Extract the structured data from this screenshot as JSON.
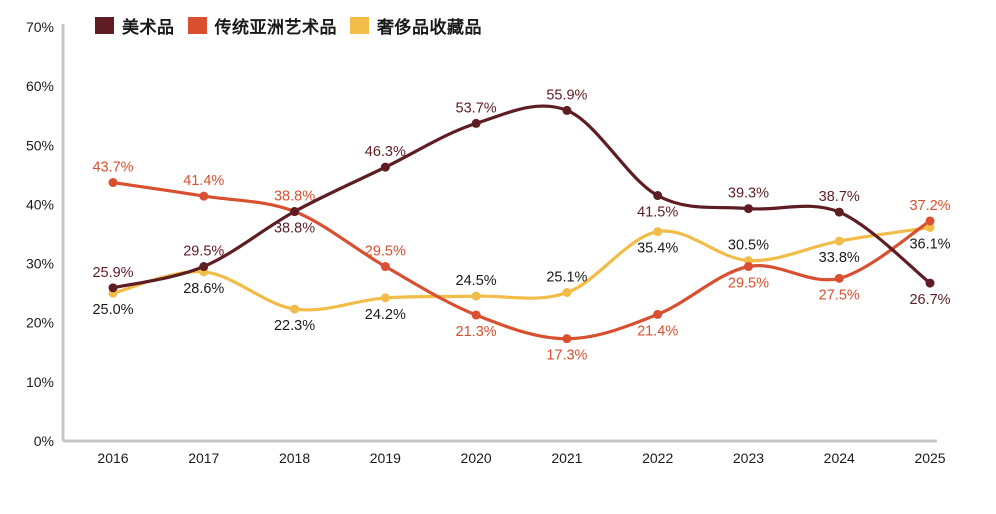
{
  "page": {
    "background": "#ffffff"
  },
  "legend": {
    "items": [
      {
        "id": "fine-art",
        "label": "美术品",
        "color": "#5E1D23"
      },
      {
        "id": "traditional-asian-art",
        "label": "传统亚洲艺术品",
        "color": "#D8502F"
      },
      {
        "id": "luxury-collectibles",
        "label": "奢侈品收藏品",
        "color": "#F2BC49"
      }
    ]
  },
  "chart_data": {
    "type": "line",
    "categories": [
      "2016",
      "2017",
      "2018",
      "2019",
      "2020",
      "2021",
      "2022",
      "2023",
      "2024",
      "2025"
    ],
    "series": [
      {
        "id": "fine-art",
        "name": "美术品",
        "color": "#5E1D23",
        "label_color": "#5E1D23",
        "values": [
          25.9,
          29.5,
          38.8,
          46.3,
          53.7,
          55.9,
          41.5,
          39.3,
          38.7,
          26.7
        ],
        "labels": [
          "25.9%",
          "29.5%",
          "38.8%",
          "46.3%",
          "53.7%",
          "55.9%",
          "41.5%",
          "39.3%",
          "38.7%",
          "26.7%"
        ],
        "label_positions": [
          "above",
          "above",
          "below",
          "above",
          "above",
          "above",
          "below",
          "above",
          "above",
          "below"
        ]
      },
      {
        "id": "traditional-asian-art",
        "name": "传统亚洲艺术品",
        "color": "#D8502F",
        "label_color": "#D8502F",
        "values": [
          43.7,
          41.4,
          38.8,
          29.5,
          21.3,
          17.3,
          21.4,
          29.5,
          27.5,
          37.2
        ],
        "labels": [
          "43.7%",
          "41.4%",
          "38.8%",
          "29.5%",
          "21.3%",
          "17.3%",
          "21.4%",
          "29.5%",
          "27.5%",
          "37.2%"
        ],
        "label_positions": [
          "above",
          "above",
          "above",
          "above",
          "below",
          "below",
          "below",
          "below",
          "below",
          "above"
        ]
      },
      {
        "id": "luxury-collectibles",
        "name": "奢侈品收藏品",
        "color": "#F2BC49",
        "label_color": "#1A1A1A",
        "values": [
          25.0,
          28.6,
          22.3,
          24.2,
          24.5,
          25.1,
          35.4,
          30.5,
          33.8,
          36.1
        ],
        "labels": [
          "25.0%",
          "28.6%",
          "22.3%",
          "24.2%",
          "24.5%",
          "25.1%",
          "35.4%",
          "30.5%",
          "33.8%",
          "36.1%"
        ],
        "label_positions": [
          "below",
          "below",
          "below",
          "below",
          "above",
          "above",
          "below",
          "above",
          "below",
          "below"
        ]
      }
    ],
    "title": "",
    "xlabel": "",
    "ylabel": "",
    "ylim": [
      0,
      70
    ],
    "y_ticks": [
      "0%",
      "10%",
      "20%",
      "30%",
      "40%",
      "50%",
      "60%",
      "70%"
    ],
    "y_tick_values": [
      0,
      10,
      20,
      30,
      40,
      50,
      60,
      70
    ],
    "grid": false,
    "legend_position": "top-left",
    "axis_color": "#C5C7C9",
    "tick_label_color": "#1A1A1A",
    "value_suffix": "%"
  }
}
